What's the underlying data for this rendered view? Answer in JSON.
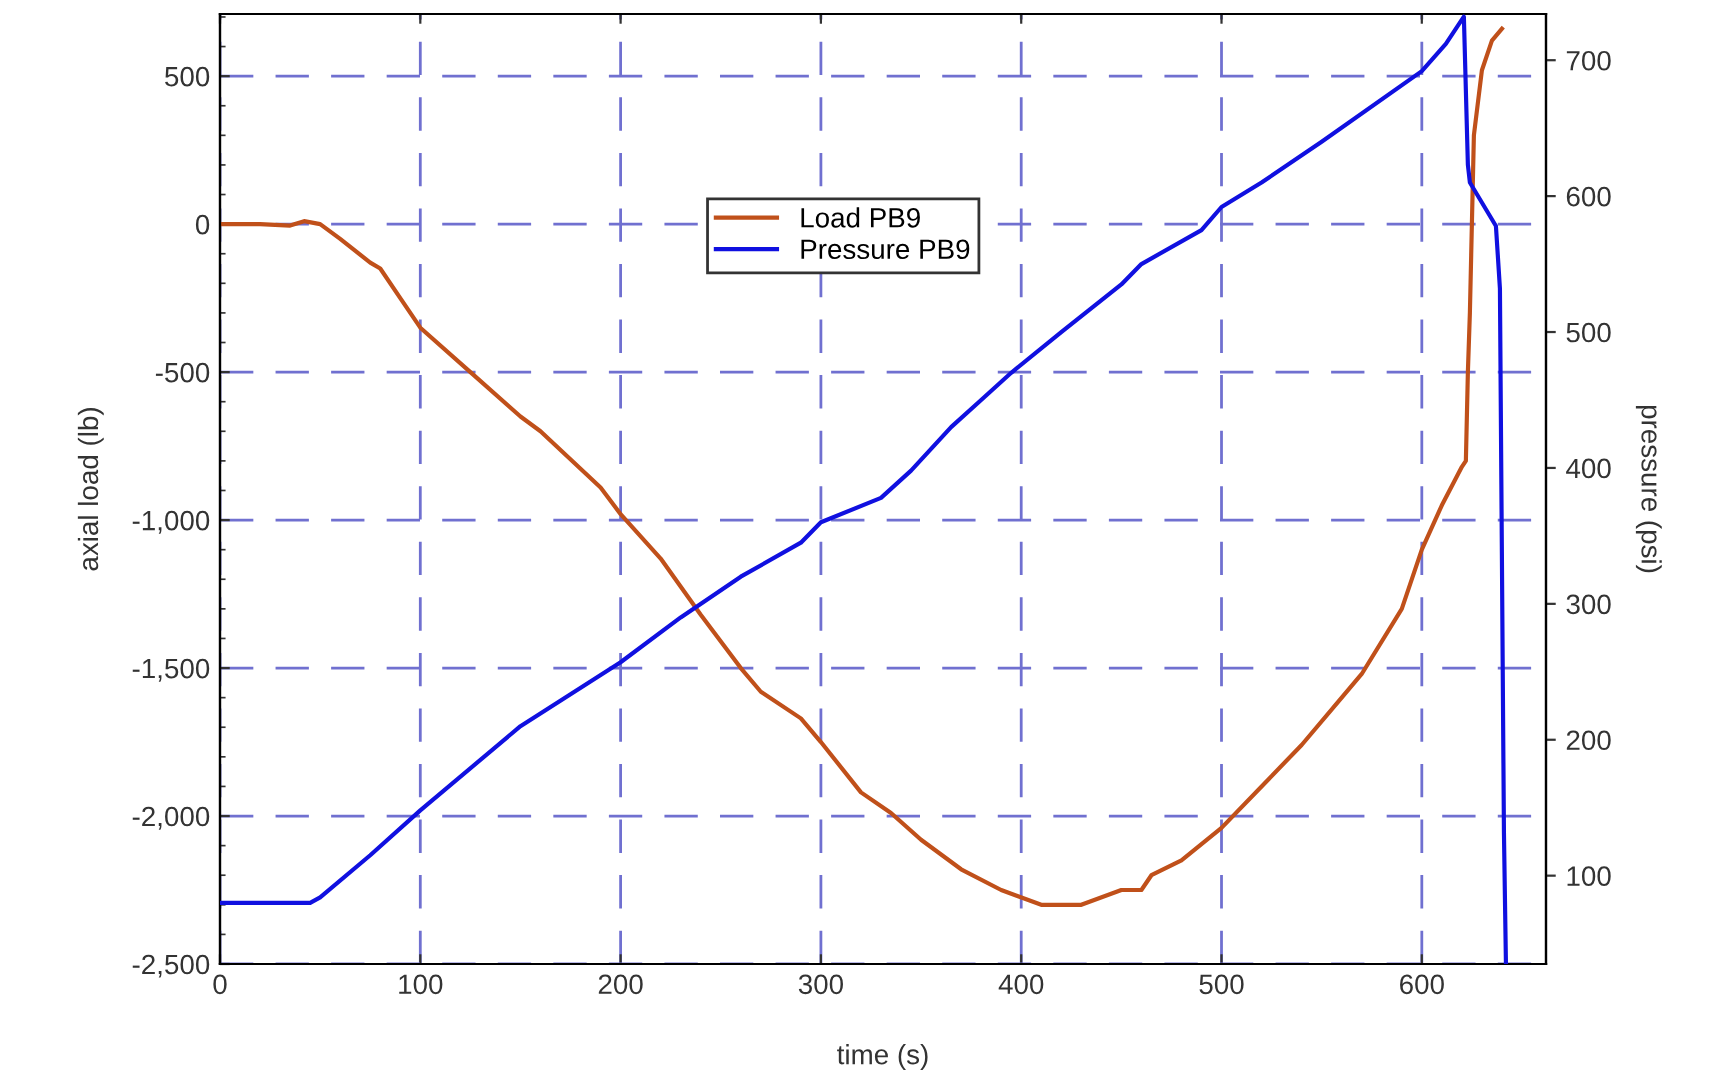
{
  "chart_data": {
    "type": "line",
    "xlabel": "time (s)",
    "ylabel": "axial load (lb)",
    "y2label": "pressure (psi)",
    "xlim": [
      0,
      662
    ],
    "xticks": [
      0,
      100,
      200,
      300,
      400,
      500,
      600
    ],
    "ylim": [
      -2500,
      710
    ],
    "yticks": [
      {
        "value": -2500,
        "label": "-2,500"
      },
      {
        "value": -2000,
        "label": "-2,000"
      },
      {
        "value": -1500,
        "label": "-1,500"
      },
      {
        "value": -1000,
        "label": "-1,000"
      },
      -500,
      0,
      500
    ],
    "y2lim": [
      35,
      734
    ],
    "y2ticks": [
      100,
      200,
      300,
      400,
      500,
      600,
      700
    ],
    "grid": true,
    "legend": "top",
    "line_style": "solid",
    "marker": "none",
    "series": [
      {
        "name": "Load PB9",
        "color": "#c0501a",
        "x": [
          0,
          20,
          35,
          42,
          50,
          60,
          75,
          80,
          90,
          100,
          125,
          150,
          160,
          190,
          200,
          220,
          240,
          260,
          270,
          290,
          300,
          320,
          335,
          350,
          370,
          390,
          410,
          430,
          450,
          460,
          465,
          480,
          500,
          520,
          540,
          560,
          570,
          590,
          600,
          610,
          620,
          622,
          623,
          624,
          626,
          630,
          635,
          640
        ],
        "values": [
          0,
          0,
          -5,
          10,
          0,
          -50,
          -130,
          -150,
          -250,
          -350,
          -500,
          -650,
          -700,
          -890,
          -980,
          -1130,
          -1320,
          -1500,
          -1580,
          -1670,
          -1750,
          -1920,
          -1990,
          -2080,
          -2180,
          -2250,
          -2300,
          -2300,
          -2250,
          -2250,
          -2200,
          -2150,
          -2040,
          -1900,
          -1760,
          -1600,
          -1520,
          -1300,
          -1100,
          -950,
          -820,
          -800,
          -500,
          -300,
          300,
          520,
          620,
          660
        ]
      },
      {
        "name": "Pressure PB9",
        "color": "#1010e0",
        "axis": "y2",
        "x": [
          0,
          45,
          50,
          75,
          100,
          150,
          200,
          230,
          260,
          290,
          300,
          330,
          345,
          365,
          380,
          395,
          420,
          450,
          460,
          490,
          500,
          520,
          550,
          600,
          612,
          621,
          623,
          624,
          637,
          639,
          641,
          642
        ],
        "values": [
          80,
          80,
          84,
          115,
          148,
          210,
          257,
          290,
          320,
          345,
          360,
          378,
          398,
          430,
          450,
          470,
          500,
          535,
          550,
          575,
          592,
          610,
          640,
          692,
          712,
          732,
          623,
          610,
          578,
          532,
          132,
          35
        ]
      }
    ]
  }
}
